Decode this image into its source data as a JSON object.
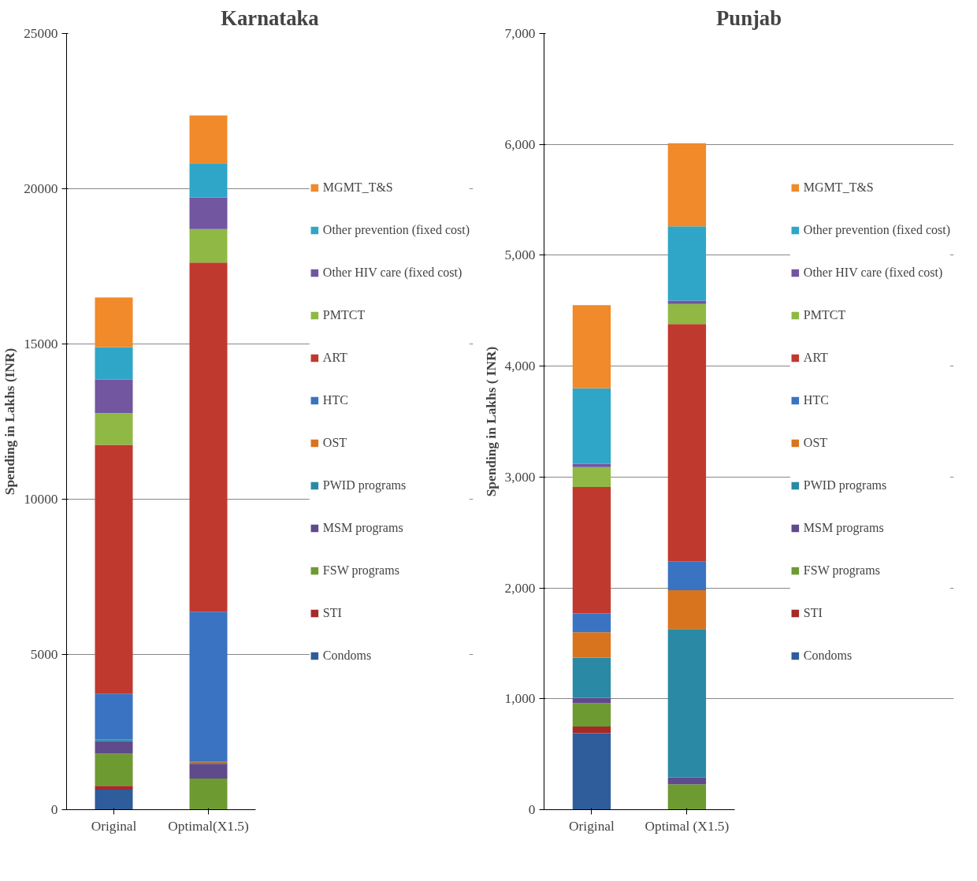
{
  "chart_data": [
    {
      "type": "bar",
      "title": "Karnataka",
      "ylabel": "Spending in Lakhs (INR)",
      "categories": [
        "Original",
        "Optimal(X1.5)"
      ],
      "stacked": true,
      "ylim": [
        0,
        25000
      ],
      "yticks": [
        0,
        5000,
        10000,
        15000,
        20000,
        25000
      ],
      "grid": "y",
      "legend": "right",
      "series": [
        {
          "name": "Condoms",
          "color": "#2f5c9a",
          "values": [
            650,
            0
          ]
        },
        {
          "name": "STI",
          "color": "#a52a2a",
          "values": [
            120,
            0
          ]
        },
        {
          "name": "FSW programs",
          "color": "#6e9a32",
          "values": [
            1030,
            1000
          ]
        },
        {
          "name": "MSM programs",
          "color": "#5f4a8b",
          "values": [
            400,
            480
          ]
        },
        {
          "name": "PWID programs",
          "color": "#2a8aa5",
          "values": [
            60,
            30
          ]
        },
        {
          "name": "OST",
          "color": "#d9741e",
          "values": [
            0,
            30
          ]
        },
        {
          "name": "HTC",
          "color": "#3a73c1",
          "values": [
            1480,
            4840
          ]
        },
        {
          "name": "ART",
          "color": "#c0392f",
          "values": [
            8010,
            11240
          ]
        },
        {
          "name": "PMTCT",
          "color": "#8fb944",
          "values": [
            1020,
            1080
          ]
        },
        {
          "name": "Other HIV care (fixed cost)",
          "color": "#7256a0",
          "values": [
            1080,
            1020
          ]
        },
        {
          "name": "Other prevention (fixed cost)",
          "color": "#2fa6c8",
          "values": [
            1050,
            1080
          ]
        },
        {
          "name": "MGMT_T&S",
          "color": "#f08a2a",
          "values": [
            1600,
            1560
          ]
        }
      ]
    },
    {
      "type": "bar",
      "title": "Punjab",
      "ylabel": "Spending in Lakhs ( INR)",
      "categories": [
        "Original",
        "Optimal (X1.5)"
      ],
      "stacked": true,
      "ylim": [
        0,
        7000
      ],
      "yticks": [
        0,
        {
          "value": 1000,
          "label": "1,000"
        },
        {
          "value": 2000,
          "label": "2,000"
        },
        {
          "value": 3000,
          "label": "3,000"
        },
        {
          "value": 4000,
          "label": "4,000"
        },
        {
          "value": 5000,
          "label": "5,000"
        },
        {
          "value": 6000,
          "label": "6,000"
        },
        {
          "value": 7000,
          "label": "7,000"
        }
      ],
      "grid": "y",
      "legend": "right",
      "series": [
        {
          "name": "Condoms",
          "color": "#2f5c9a",
          "values": [
            690,
            0
          ]
        },
        {
          "name": "STI",
          "color": "#a52a2a",
          "values": [
            60,
            0
          ]
        },
        {
          "name": "FSW programs",
          "color": "#6e9a32",
          "values": [
            210,
            230
          ]
        },
        {
          "name": "MSM programs",
          "color": "#5f4a8b",
          "values": [
            50,
            60
          ]
        },
        {
          "name": "PWID programs",
          "color": "#2a8aa5",
          "values": [
            360,
            1340
          ]
        },
        {
          "name": "OST",
          "color": "#d9741e",
          "values": [
            230,
            350
          ]
        },
        {
          "name": "HTC",
          "color": "#3a73c1",
          "values": [
            170,
            260
          ]
        },
        {
          "name": "ART",
          "color": "#c0392f",
          "values": [
            1140,
            2140
          ]
        },
        {
          "name": "PMTCT",
          "color": "#8fb944",
          "values": [
            180,
            180
          ]
        },
        {
          "name": "Other HIV care (fixed cost)",
          "color": "#7256a0",
          "values": [
            30,
            30
          ]
        },
        {
          "name": "Other prevention (fixed cost)",
          "color": "#2fa6c8",
          "values": [
            680,
            670
          ]
        },
        {
          "name": "MGMT_T&S",
          "color": "#f08a2a",
          "values": [
            750,
            750
          ]
        }
      ]
    }
  ]
}
